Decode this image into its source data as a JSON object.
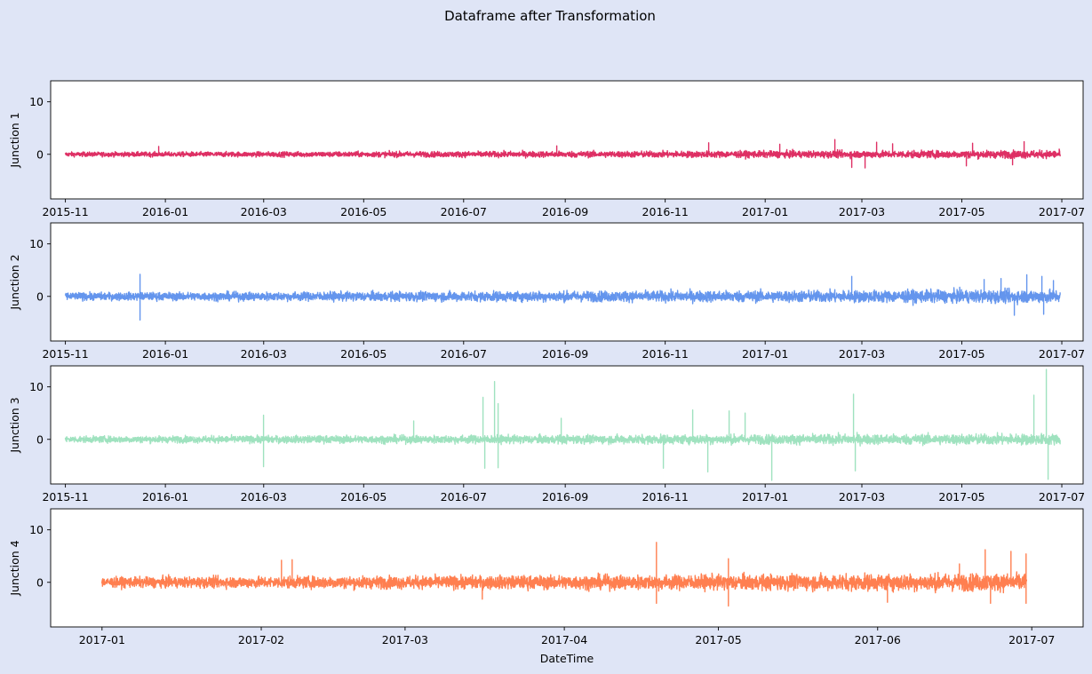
{
  "title": "Dataframe after Transformation",
  "chart_data": [
    {
      "type": "line",
      "ylabel": "Junction 1",
      "xlabel": "",
      "color": "#de2f64",
      "x_range": [
        "2015-10-23",
        "2017-07-14"
      ],
      "ylim": [
        -8.5,
        14
      ],
      "yticks": [
        0,
        10
      ],
      "xticks": [
        "2015-11",
        "2016-01",
        "2016-03",
        "2016-05",
        "2016-07",
        "2016-09",
        "2016-11",
        "2017-01",
        "2017-03",
        "2017-05",
        "2017-07"
      ],
      "series": [
        {
          "x_start": "2015-11-01",
          "x_end": "2017-06-30",
          "baseline": 0,
          "noise": 0.35,
          "spikes": [
            {
              "x": "2015-12-28",
              "y": 1.5
            },
            {
              "x": "2016-08-27",
              "y": 1.6
            },
            {
              "x": "2016-11-28",
              "y": 2.2
            },
            {
              "x": "2017-01-10",
              "y": 1.9
            },
            {
              "x": "2017-02-13",
              "y": 2.8
            },
            {
              "x": "2017-02-23",
              "y": -2.5
            },
            {
              "x": "2017-03-03",
              "y": -2.6
            },
            {
              "x": "2017-03-10",
              "y": 2.3
            },
            {
              "x": "2017-03-20",
              "y": 2.0
            },
            {
              "x": "2017-05-08",
              "y": 2.1
            },
            {
              "x": "2017-05-04",
              "y": -2.2
            },
            {
              "x": "2017-06-08",
              "y": 2.4
            },
            {
              "x": "2017-06-01",
              "y": -2.0
            }
          ]
        }
      ]
    },
    {
      "type": "line",
      "ylabel": "Junction 2",
      "xlabel": "",
      "color": "#6495ed",
      "x_range": [
        "2015-10-23",
        "2017-07-14"
      ],
      "ylim": [
        -8.5,
        14
      ],
      "yticks": [
        0,
        10
      ],
      "xticks": [
        "2015-11",
        "2016-01",
        "2016-03",
        "2016-05",
        "2016-07",
        "2016-09",
        "2016-11",
        "2017-01",
        "2017-03",
        "2017-05",
        "2017-07"
      ],
      "series": [
        {
          "x_start": "2015-11-01",
          "x_end": "2017-06-30",
          "baseline": 0,
          "noise": 0.6,
          "spikes": [
            {
              "x": "2015-12-17",
              "y": 4.2
            },
            {
              "x": "2015-12-17",
              "y": -4.5
            },
            {
              "x": "2017-02-23",
              "y": 3.8
            },
            {
              "x": "2017-05-15",
              "y": 3.2
            },
            {
              "x": "2017-05-25",
              "y": 3.4
            },
            {
              "x": "2017-06-10",
              "y": 4.1
            },
            {
              "x": "2017-06-19",
              "y": 3.8
            },
            {
              "x": "2017-06-20",
              "y": -3.4
            },
            {
              "x": "2017-06-02",
              "y": -3.6
            },
            {
              "x": "2017-06-26",
              "y": 3.0
            }
          ]
        }
      ]
    },
    {
      "type": "line",
      "ylabel": "Junction 3",
      "xlabel": "",
      "color": "#9fe2bf",
      "x_range": [
        "2015-10-23",
        "2017-07-14"
      ],
      "ylim": [
        -8.5,
        14
      ],
      "yticks": [
        0,
        10
      ],
      "xticks": [
        "2015-11",
        "2016-01",
        "2016-03",
        "2016-05",
        "2016-07",
        "2016-09",
        "2016-11",
        "2017-01",
        "2017-03",
        "2017-05",
        "2017-07"
      ],
      "series": [
        {
          "x_start": "2015-11-01",
          "x_end": "2017-06-30",
          "baseline": 0,
          "noise": 0.5,
          "spikes": [
            {
              "x": "2016-03-01",
              "y": 4.6
            },
            {
              "x": "2016-03-01",
              "y": -5.2
            },
            {
              "x": "2016-07-13",
              "y": 8.0
            },
            {
              "x": "2016-07-14",
              "y": -5.5
            },
            {
              "x": "2016-07-20",
              "y": 11.0
            },
            {
              "x": "2016-07-22",
              "y": 6.8
            },
            {
              "x": "2016-07-22",
              "y": -5.4
            },
            {
              "x": "2016-10-31",
              "y": -5.5
            },
            {
              "x": "2016-11-18",
              "y": 5.6
            },
            {
              "x": "2016-11-27",
              "y": -6.2
            },
            {
              "x": "2016-12-10",
              "y": 5.4
            },
            {
              "x": "2017-01-05",
              "y": -7.8
            },
            {
              "x": "2016-12-20",
              "y": 5.0
            },
            {
              "x": "2017-02-24",
              "y": 8.6
            },
            {
              "x": "2017-02-25",
              "y": -6.0
            },
            {
              "x": "2017-06-14",
              "y": 8.4
            },
            {
              "x": "2017-06-22",
              "y": 13.3
            },
            {
              "x": "2017-06-23",
              "y": -7.6
            },
            {
              "x": "2016-06-01",
              "y": 3.5
            },
            {
              "x": "2016-08-30",
              "y": 4.0
            }
          ]
        }
      ]
    },
    {
      "type": "line",
      "ylabel": "Junction 4",
      "xlabel": "DateTime",
      "color": "#ff7f50",
      "x_range": [
        "2016-12-22",
        "2017-07-11"
      ],
      "ylim": [
        -8.5,
        14
      ],
      "yticks": [
        0,
        10
      ],
      "xticks": [
        "2017-01",
        "2017-02",
        "2017-03",
        "2017-04",
        "2017-05",
        "2017-06",
        "2017-07"
      ],
      "series": [
        {
          "x_start": "2017-01-01",
          "x_end": "2017-06-30",
          "baseline": 0,
          "noise": 0.8,
          "spikes": [
            {
              "x": "2017-02-05",
              "y": 4.2
            },
            {
              "x": "2017-02-07",
              "y": 4.3
            },
            {
              "x": "2017-04-19",
              "y": 7.6
            },
            {
              "x": "2017-04-19",
              "y": -4.0
            },
            {
              "x": "2017-05-03",
              "y": 4.5
            },
            {
              "x": "2017-05-03",
              "y": -4.5
            },
            {
              "x": "2017-06-22",
              "y": 6.2
            },
            {
              "x": "2017-06-27",
              "y": 5.9
            },
            {
              "x": "2017-06-30",
              "y": 5.4
            },
            {
              "x": "2017-06-30",
              "y": -4.0
            },
            {
              "x": "2017-06-03",
              "y": -3.8
            },
            {
              "x": "2017-06-23",
              "y": -4.0
            },
            {
              "x": "2017-03-16",
              "y": -3.2
            },
            {
              "x": "2017-06-17",
              "y": 3.5
            }
          ]
        }
      ]
    }
  ]
}
